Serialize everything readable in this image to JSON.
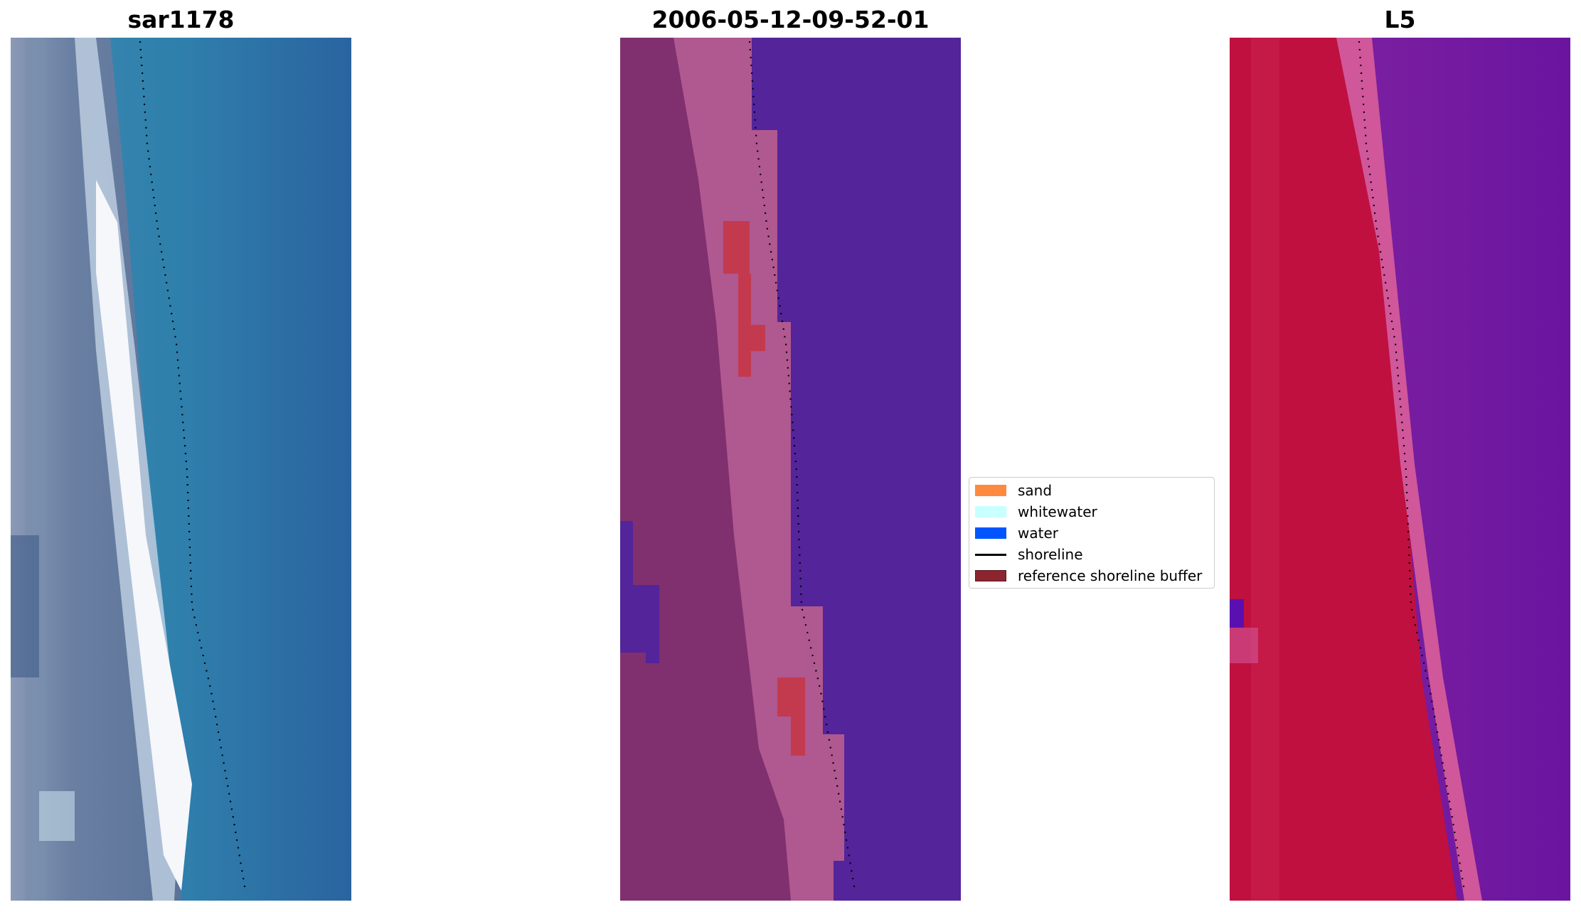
{
  "panels": [
    {
      "title": "sar1178",
      "colors": {
        "water": "#2a6aa5",
        "surf": "#e8f2f8",
        "land": "#6f86a6"
      }
    },
    {
      "title": "2006-05-12-09-52-01",
      "colors": {
        "water": "#53249a",
        "land": "#80306e",
        "sand": "#b85f96",
        "buffer": "#c33a4f"
      }
    },
    {
      "title": "L5",
      "colors": {
        "water": "#7a22a0",
        "land": "#c0103f",
        "band": "#d0579a"
      }
    }
  ],
  "legend": {
    "items": [
      {
        "label": "sand",
        "color": "#ff8a3d",
        "kind": "patch"
      },
      {
        "label": "whitewater",
        "color": "#c8ffff",
        "kind": "patch"
      },
      {
        "label": "water",
        "color": "#0055ff",
        "kind": "patch"
      },
      {
        "label": "shoreline",
        "color": "#000000",
        "kind": "line"
      },
      {
        "label": "reference shoreline buffer",
        "color": "#8c2530",
        "kind": "patch"
      }
    ]
  }
}
